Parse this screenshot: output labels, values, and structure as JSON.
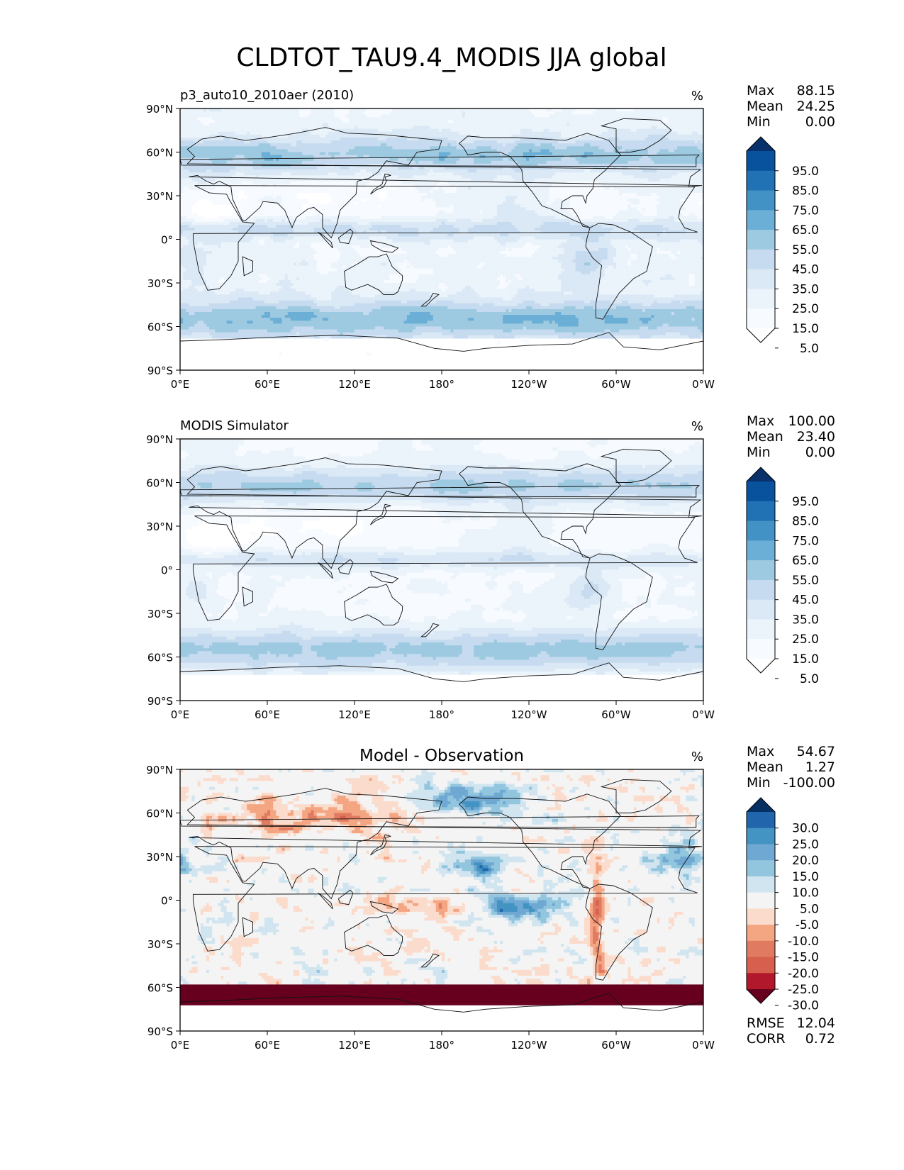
{
  "chart_data": {
    "type": "contour-map",
    "suptitle": "CLDTOT_TAU9.4_MODIS JJA global",
    "lat_ticks": [
      "90°N",
      "60°N",
      "30°N",
      "0°",
      "30°S",
      "60°S",
      "90°S"
    ],
    "lon_ticks": [
      "0°E",
      "60°E",
      "120°E",
      "180°",
      "120°W",
      "60°W",
      "0°W"
    ],
    "xlim": [
      0,
      360
    ],
    "ylim": [
      -90,
      90
    ],
    "panels": [
      {
        "title_left": "p3_auto10_2010aer (2010)",
        "title_center": "",
        "units": "%",
        "stats": [
          {
            "label": "Max",
            "value": "88.15"
          },
          {
            "label": "Mean",
            "value": "24.25"
          },
          {
            "label": "Min",
            "value": "0.00"
          }
        ],
        "colorbar": {
          "labels": [
            "95.0",
            "85.0",
            "75.0",
            "65.0",
            "55.0",
            "45.0",
            "35.0",
            "25.0",
            "15.0",
            "5.0"
          ],
          "colors": [
            "#08306b",
            "#08519c",
            "#2171b5",
            "#4292c6",
            "#6baed6",
            "#9ecae1",
            "#c6dbef",
            "#dbe9f6",
            "#ebf3fb",
            "#f7fbff",
            "#ffffff"
          ]
        },
        "field": "test"
      },
      {
        "title_left": "MODIS Simulator",
        "title_center": "",
        "units": "%",
        "stats": [
          {
            "label": "Max",
            "value": "100.00"
          },
          {
            "label": "Mean",
            "value": "23.40"
          },
          {
            "label": "Min",
            "value": "0.00"
          }
        ],
        "colorbar": {
          "labels": [
            "95.0",
            "85.0",
            "75.0",
            "65.0",
            "55.0",
            "45.0",
            "35.0",
            "25.0",
            "15.0",
            "5.0"
          ],
          "colors": [
            "#08306b",
            "#08519c",
            "#2171b5",
            "#4292c6",
            "#6baed6",
            "#9ecae1",
            "#c6dbef",
            "#dbe9f6",
            "#ebf3fb",
            "#f7fbff",
            "#ffffff"
          ]
        },
        "field": "ref"
      },
      {
        "title_left": "",
        "title_center": "Model - Observation",
        "units": "%",
        "stats": [
          {
            "label": "Max",
            "value": "54.67"
          },
          {
            "label": "Mean",
            "value": "1.27"
          },
          {
            "label": "Min",
            "value": "-100.00"
          }
        ],
        "colorbar": {
          "labels": [
            "30.0",
            "25.0",
            "20.0",
            "15.0",
            "10.0",
            "5.0",
            "-5.0",
            "-10.0",
            "-15.0",
            "-20.0",
            "-25.0",
            "-30.0"
          ],
          "colors": [
            "#053061",
            "#2166ac",
            "#4393c3",
            "#6fa9d3",
            "#92c5de",
            "#d1e5f0",
            "#f4f4f4",
            "#fbdccc",
            "#f4a582",
            "#e07b62",
            "#d6604d",
            "#b2182b",
            "#67001f"
          ]
        },
        "extra_stats": [
          {
            "label": "RMSE",
            "value": "12.04"
          },
          {
            "label": "CORR",
            "value": "0.72"
          }
        ],
        "field": "diff"
      }
    ]
  }
}
